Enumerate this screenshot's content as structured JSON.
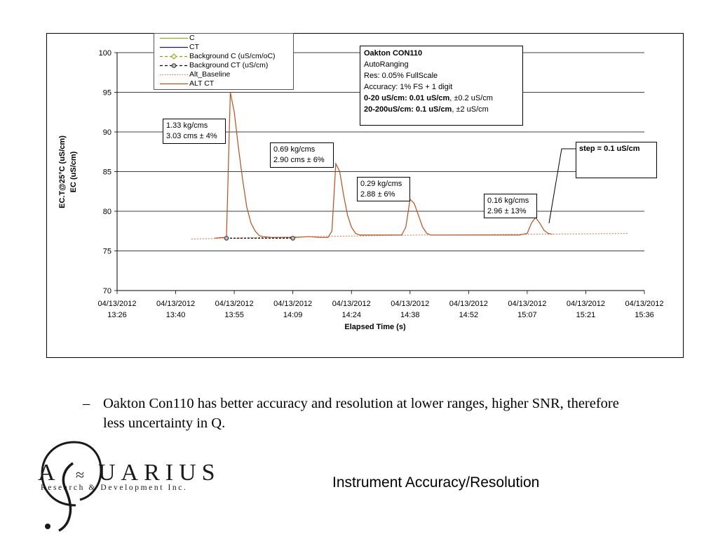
{
  "chart_data": {
    "type": "line",
    "ylabel_lines": [
      "EC.T@25°C (uS/cm)",
      "EC (uS/cm)"
    ],
    "xlabel": "Elapsed Time (s)",
    "ylim": [
      70,
      100
    ],
    "yticks": [
      70,
      75,
      80,
      85,
      90,
      95,
      100
    ],
    "xticks": [
      {
        "date": "04/13/2012",
        "time": "13:26"
      },
      {
        "date": "04/13/2012",
        "time": "13:40"
      },
      {
        "date": "04/13/2012",
        "time": "13:55"
      },
      {
        "date": "04/13/2012",
        "time": "14:09"
      },
      {
        "date": "04/13/2012",
        "time": "14:24"
      },
      {
        "date": "04/13/2012",
        "time": "14:38"
      },
      {
        "date": "04/13/2012",
        "time": "14:52"
      },
      {
        "date": "04/13/2012",
        "time": "15:07"
      },
      {
        "date": "04/13/2012",
        "time": "15:21"
      },
      {
        "date": "04/13/2012",
        "time": "15:36"
      }
    ],
    "grid": "horizontal",
    "legend": [
      {
        "label": "C",
        "color": "#9aa33a",
        "style": "solid"
      },
      {
        "label": "CT",
        "color": "#1a1a66",
        "style": "solid"
      },
      {
        "label": "Background C (uS/cm/oC)",
        "color": "#9a9a00",
        "style": "dashed-diamond"
      },
      {
        "label": "Background CT (uS/cm)",
        "color": "#000000",
        "style": "dashed-circle"
      },
      {
        "label": "Alt_Baseline",
        "color": "#c87050",
        "style": "dotted"
      },
      {
        "label": "ALT CT",
        "color": "#b5501e",
        "style": "solid"
      }
    ],
    "series": [
      {
        "name": "ALT CT",
        "color": "#b5501e",
        "points": [
          [
            "13:50",
            76.6
          ],
          [
            "13:52",
            76.7
          ],
          [
            "13:53",
            76.7
          ],
          [
            "13:54",
            95.0
          ],
          [
            "13:55",
            92.5
          ],
          [
            "13:56",
            88.0
          ],
          [
            "13:57",
            84.0
          ],
          [
            "13:58",
            80.5
          ],
          [
            "13:59",
            78.5
          ],
          [
            "14:00",
            77.5
          ],
          [
            "14:01",
            76.9
          ],
          [
            "14:02",
            76.8
          ],
          [
            "14:04",
            76.7
          ],
          [
            "14:10",
            76.7
          ],
          [
            "14:13",
            76.8
          ],
          [
            "14:16",
            76.7
          ],
          [
            "14:18",
            76.7
          ],
          [
            "14:19",
            77.5
          ],
          [
            "14:20",
            86.0
          ],
          [
            "14:21",
            85.0
          ],
          [
            "14:22",
            82.0
          ],
          [
            "14:23",
            79.5
          ],
          [
            "14:24",
            78.0
          ],
          [
            "14:25",
            77.2
          ],
          [
            "14:26",
            77.0
          ],
          [
            "14:36",
            77.0
          ],
          [
            "14:37",
            78.0
          ],
          [
            "14:38",
            81.5
          ],
          [
            "14:39",
            81.0
          ],
          [
            "14:40",
            79.5
          ],
          [
            "14:41",
            78.0
          ],
          [
            "14:42",
            77.2
          ],
          [
            "14:43",
            77.0
          ],
          [
            "14:47",
            77.0
          ],
          [
            "14:49",
            77.0
          ],
          [
            "15:05",
            77.0
          ],
          [
            "15:07",
            77.2
          ],
          [
            "15:08",
            78.5
          ],
          [
            "15:09",
            79.2
          ],
          [
            "15:10",
            78.5
          ],
          [
            "15:11",
            77.6
          ],
          [
            "15:12",
            77.2
          ],
          [
            "15:13",
            77.1
          ]
        ]
      },
      {
        "name": "Alt_Baseline",
        "color": "#c87050",
        "points": [
          [
            "13:44",
            76.5
          ],
          [
            "14:12",
            76.8
          ],
          [
            "14:40",
            77.0
          ],
          [
            "15:08",
            77.1
          ],
          [
            "15:32",
            77.2
          ]
        ]
      },
      {
        "name": "Background CT (uS/cm)",
        "color": "#000000",
        "points": [
          [
            "13:53",
            76.6
          ],
          [
            "14:09",
            76.6
          ]
        ]
      }
    ],
    "annotations": [
      {
        "lines": [
          "1.33 kg/cms",
          "3.03 cms ± 4%"
        ]
      },
      {
        "lines": [
          "0.69 kg/cms",
          "2.90 cms ± 6%"
        ]
      },
      {
        "lines": [
          "0.29 kg/cms",
          "2.88 ± 6%"
        ]
      },
      {
        "lines": [
          "0.16 kg/cms",
          "2.96 ± 13%"
        ]
      },
      {
        "lines": [
          "step = 0.1 uS/cm"
        ]
      }
    ],
    "info_box": {
      "title": "Oakton CON110",
      "lines": [
        "AutoRanging",
        "Res: 0.05% FullScale",
        "Accuracy: 1% FS + 1 digit"
      ],
      "range1_bold": "0-20 uS/cm: 0.01 uS/cm",
      "range1_rest": ", ±0.2 uS/cm",
      "range2_bold": "20-200uS/cm: 0.1 uS/cm",
      "range2_rest": ", ±2 uS/cm"
    }
  },
  "slide": {
    "bullet_dash": "–",
    "bullet_text": "Oakton Con110 has better accuracy and resolution at lower ranges,  higher SNR, therefore less uncertainty in Q.",
    "footer_title": "Instrument Accuracy/Resolution"
  },
  "logo": {
    "letters": [
      "A",
      "U",
      "A",
      "R",
      "I",
      "U",
      "S"
    ],
    "subtitle": "Research & Development Inc.",
    "colors": {
      "primary": "#1a1a1a"
    }
  }
}
